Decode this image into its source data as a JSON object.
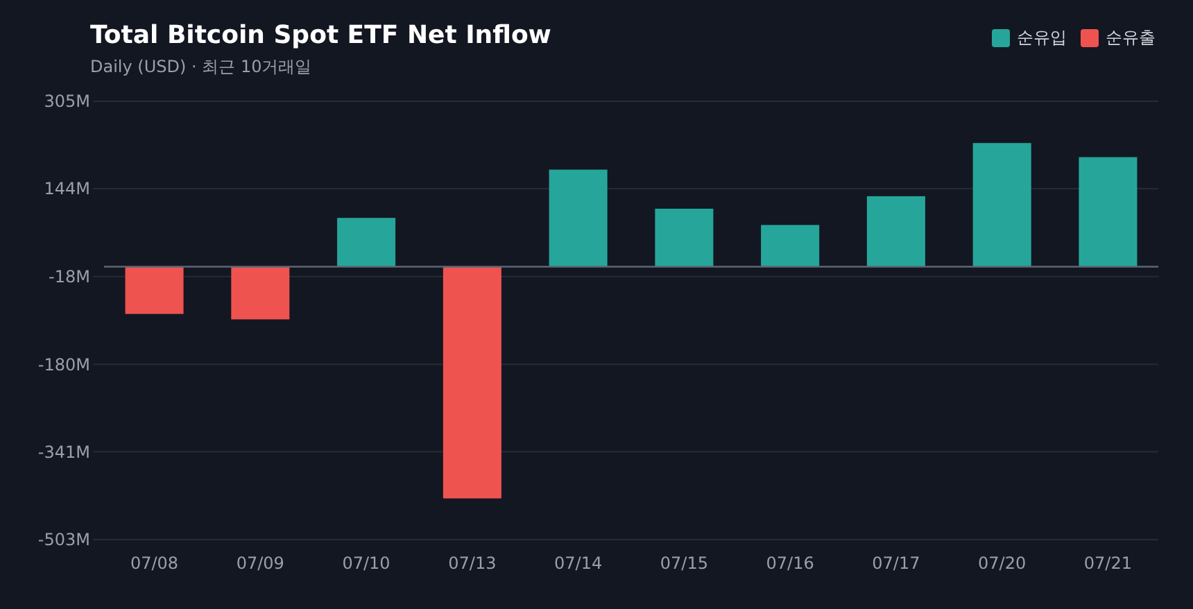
{
  "chart_data": {
    "type": "bar",
    "title": "Total Bitcoin Spot ETF Net Inflow",
    "subtitle": "Daily (USD) · 최근 10거래일",
    "categories": [
      "07/08",
      "07/09",
      "07/10",
      "07/13",
      "07/14",
      "07/15",
      "07/16",
      "07/17",
      "07/20",
      "07/21"
    ],
    "series": [
      {
        "name": "순유입",
        "color": "#26a69a",
        "values": [
          null,
          null,
          90,
          null,
          179,
          107,
          77,
          130,
          228,
          202
        ]
      },
      {
        "name": "순유출",
        "color": "#ef5350",
        "values": [
          -87,
          -97,
          null,
          -427,
          null,
          null,
          null,
          null,
          null,
          null
        ]
      }
    ],
    "ylim": [
      -503,
      305
    ],
    "yticks": [
      {
        "value": -503,
        "label": "-503M"
      },
      {
        "value": -341,
        "label": "-341M"
      },
      {
        "value": -180,
        "label": "-180M"
      },
      {
        "value": -18,
        "label": "-18M"
      },
      {
        "value": 144,
        "label": "144M"
      },
      {
        "value": 305,
        "label": "305M"
      }
    ],
    "grid": "y",
    "legend": "top right"
  }
}
